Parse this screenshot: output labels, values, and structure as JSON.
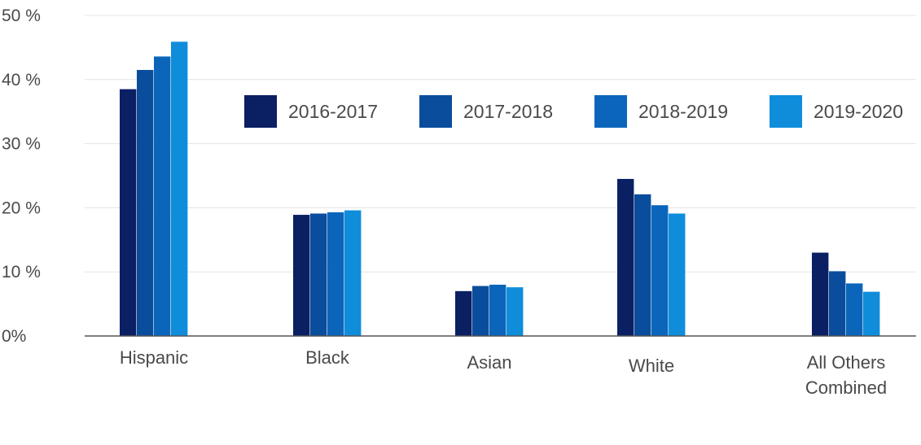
{
  "chart_data": {
    "type": "bar",
    "title": "",
    "xlabel": "",
    "ylabel": "",
    "categories": [
      "Hispanic",
      "Black",
      "Asian",
      "White",
      "All Others Combined"
    ],
    "category_label_lines": [
      [
        "Hispanic"
      ],
      [
        "Black"
      ],
      [
        "Asian"
      ],
      [
        "White"
      ],
      [
        "All Others",
        "Combined"
      ]
    ],
    "series": [
      {
        "name": "2016-2017",
        "color": "#0b1f63",
        "values": [
          38.5,
          18.9,
          7.0,
          24.5,
          13.0
        ]
      },
      {
        "name": "2017-2018",
        "color": "#0a4d9c",
        "values": [
          41.5,
          19.1,
          7.8,
          22.1,
          10.1
        ]
      },
      {
        "name": "2018-2019",
        "color": "#0b66bb",
        "values": [
          43.6,
          19.3,
          8.0,
          20.4,
          8.2
        ]
      },
      {
        "name": "2019-2020",
        "color": "#0f8ddb",
        "values": [
          45.9,
          19.6,
          7.6,
          19.1,
          6.9
        ]
      }
    ],
    "y_ticks": [
      "0%",
      "10  %",
      "20  %",
      "30  %",
      "40  %",
      "50  %"
    ],
    "ylim": [
      0,
      50
    ],
    "grid": true,
    "legend_position": "top-right"
  }
}
